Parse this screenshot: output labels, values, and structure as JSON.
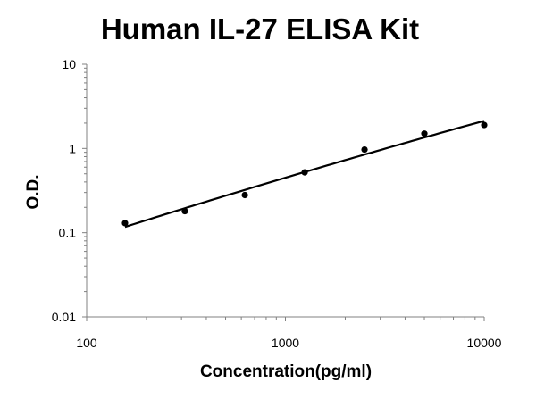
{
  "chart_data": {
    "type": "scatter",
    "title": "Human IL-27 ELISA Kit",
    "xlabel": "Concentration(pg/ml)",
    "ylabel": "O.D.",
    "xscale": "log",
    "yscale": "log",
    "xlim": [
      100,
      10000
    ],
    "ylim": [
      0.01,
      10
    ],
    "xticks": [
      "100",
      "1000",
      "10000"
    ],
    "yticks": [
      "0.01",
      "0.1",
      "1",
      "10"
    ],
    "grid": false,
    "legend": "none",
    "points": {
      "x": [
        156,
        312,
        625,
        1250,
        2500,
        5000,
        10000
      ],
      "y": [
        0.13,
        0.18,
        0.28,
        0.52,
        0.97,
        1.5,
        1.9
      ]
    },
    "fit_curve": "smooth trend line through points",
    "colors": {
      "marker": "#000000",
      "line": "#000000",
      "axis": "#808080"
    }
  }
}
